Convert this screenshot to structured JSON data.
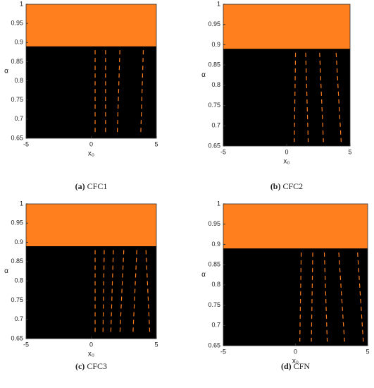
{
  "chart_data": [
    {
      "type": "band-map",
      "caption": {
        "label": "(a)",
        "text": "CFC1"
      },
      "x_label": "x₀",
      "y_label": "α",
      "xlim": [
        -5,
        5
      ],
      "ylim": [
        0.65,
        1
      ],
      "xticks": [
        -5,
        0,
        5
      ],
      "yticks": [
        0.65,
        0.7,
        0.75,
        0.8,
        0.85,
        0.9,
        0.95,
        1
      ],
      "background": "#000000",
      "band_ylim": [
        0.89,
        1
      ],
      "band_color": "#ff7f1e",
      "streak_color": "#ff7f1e",
      "streaks": [
        {
          "x": [
            0.3,
            0.3
          ],
          "y": [
            0.88,
            0.66
          ]
        },
        {
          "x": [
            1.1,
            1.1
          ],
          "y": [
            0.88,
            0.66
          ]
        },
        {
          "x": [
            2.2,
            2.0
          ],
          "y": [
            0.88,
            0.66
          ]
        },
        {
          "x": [
            4.0,
            3.8
          ],
          "y": [
            0.88,
            0.66
          ]
        }
      ]
    },
    {
      "type": "band-map",
      "caption": {
        "label": "(b)",
        "text": "CFC2"
      },
      "x_label": "x₀",
      "y_label": "α",
      "xlim": [
        -5,
        5
      ],
      "ylim": [
        0.65,
        1
      ],
      "xticks": [
        -5,
        0,
        5
      ],
      "yticks": [
        0.65,
        0.7,
        0.75,
        0.8,
        0.85,
        0.9,
        0.95,
        1
      ],
      "background": "#000000",
      "band_ylim": [
        0.89,
        1
      ],
      "band_color": "#ff7f1e",
      "streak_color": "#ff7f1e",
      "streaks": [
        {
          "x": [
            0.7,
            0.6
          ],
          "y": [
            0.88,
            0.66
          ]
        },
        {
          "x": [
            1.5,
            1.7
          ],
          "y": [
            0.88,
            0.66
          ]
        },
        {
          "x": [
            2.6,
            2.9
          ],
          "y": [
            0.88,
            0.66
          ]
        },
        {
          "x": [
            3.9,
            4.3
          ],
          "y": [
            0.88,
            0.66
          ]
        }
      ]
    },
    {
      "type": "band-map",
      "caption": {
        "label": "(c)",
        "text": "CFC3"
      },
      "x_label": "x₀",
      "y_label": "α",
      "xlim": [
        -5,
        5
      ],
      "ylim": [
        0.65,
        1
      ],
      "xticks": [
        -5,
        0,
        5
      ],
      "yticks": [
        0.65,
        0.7,
        0.75,
        0.8,
        0.85,
        0.9,
        0.95,
        1
      ],
      "background": "#000000",
      "band_ylim": [
        0.89,
        1
      ],
      "band_color": "#ff7f1e",
      "streak_color": "#ff7f1e",
      "streaks": [
        {
          "x": [
            0.3,
            0.3
          ],
          "y": [
            0.88,
            0.66
          ]
        },
        {
          "x": [
            1.0,
            0.9
          ],
          "y": [
            0.88,
            0.66
          ]
        },
        {
          "x": [
            1.7,
            1.5
          ],
          "y": [
            0.88,
            0.66
          ]
        },
        {
          "x": [
            2.5,
            2.2
          ],
          "y": [
            0.88,
            0.66
          ]
        },
        {
          "x": [
            3.5,
            3.2
          ],
          "y": [
            0.88,
            0.66
          ]
        },
        {
          "x": [
            4.2,
            4.5
          ],
          "y": [
            0.88,
            0.66
          ]
        }
      ]
    },
    {
      "type": "band-map",
      "caption": {
        "label": "(d)",
        "text": "CFN"
      },
      "x_label": "x₀",
      "y_label": "α",
      "xlim": [
        -5,
        5
      ],
      "ylim": [
        0.65,
        1
      ],
      "xticks": [
        -5,
        0,
        5
      ],
      "yticks": [
        0.65,
        0.7,
        0.75,
        0.8,
        0.85,
        0.9,
        0.95,
        1
      ],
      "background": "#000000",
      "band_ylim": [
        0.89,
        1
      ],
      "band_color": "#ff7f1e",
      "streak_color": "#ff7f1e",
      "streaks": [
        {
          "x": [
            0.4,
            0.3
          ],
          "y": [
            0.88,
            0.66
          ]
        },
        {
          "x": [
            1.2,
            1.1
          ],
          "y": [
            0.88,
            0.66
          ]
        },
        {
          "x": [
            2.0,
            2.2
          ],
          "y": [
            0.88,
            0.66
          ]
        },
        {
          "x": [
            3.0,
            3.4
          ],
          "y": [
            0.88,
            0.66
          ]
        },
        {
          "x": [
            4.3,
            4.7
          ],
          "y": [
            0.88,
            0.66
          ]
        }
      ]
    }
  ]
}
